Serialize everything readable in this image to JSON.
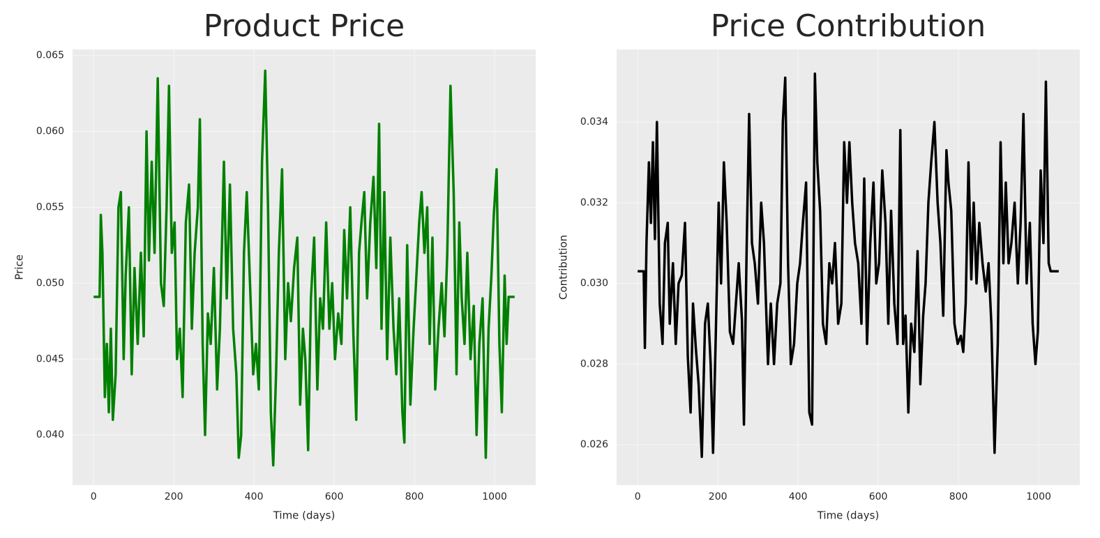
{
  "chart_data": [
    {
      "type": "line",
      "title": "Product Price",
      "xlabel": "Time (days)",
      "ylabel": "Price",
      "color": "#008000",
      "grid": true,
      "x": [
        0,
        10,
        15,
        18,
        22,
        28,
        33,
        38,
        43,
        48,
        55,
        62,
        68,
        75,
        80,
        88,
        95,
        102,
        110,
        118,
        125,
        132,
        138,
        145,
        152,
        160,
        168,
        175,
        182,
        188,
        195,
        202,
        208,
        215,
        222,
        230,
        238,
        245,
        252,
        260,
        265,
        272,
        278,
        285,
        292,
        300,
        308,
        315,
        325,
        332,
        340,
        348,
        356,
        362,
        368,
        375,
        382,
        390,
        398,
        405,
        412,
        420,
        428,
        435,
        442,
        448,
        455,
        462,
        470,
        478,
        485,
        492,
        500,
        508,
        515,
        522,
        528,
        535,
        542,
        550,
        558,
        565,
        572,
        580,
        588,
        595,
        602,
        610,
        618,
        625,
        632,
        640,
        648,
        655,
        662,
        668,
        675,
        682,
        690,
        698,
        705,
        712,
        718,
        725,
        732,
        740,
        748,
        755,
        762,
        770,
        775,
        782,
        790,
        798,
        806,
        812,
        818,
        825,
        832,
        838,
        845,
        852,
        860,
        868,
        875,
        882,
        890,
        898,
        905,
        912,
        918,
        925,
        932,
        940,
        948,
        955,
        962,
        970,
        978,
        985,
        992,
        998,
        1005,
        1012,
        1018,
        1025,
        1030,
        1035,
        1050
      ],
      "values": [
        0.0491,
        0.0491,
        0.0491,
        0.0545,
        0.052,
        0.0425,
        0.046,
        0.0415,
        0.047,
        0.041,
        0.044,
        0.055,
        0.056,
        0.045,
        0.0505,
        0.055,
        0.044,
        0.051,
        0.046,
        0.052,
        0.0465,
        0.06,
        0.0515,
        0.058,
        0.052,
        0.0635,
        0.05,
        0.0485,
        0.055,
        0.063,
        0.052,
        0.054,
        0.045,
        0.047,
        0.0425,
        0.054,
        0.0565,
        0.047,
        0.052,
        0.055,
        0.0608,
        0.046,
        0.04,
        0.048,
        0.046,
        0.051,
        0.043,
        0.047,
        0.058,
        0.049,
        0.0565,
        0.047,
        0.044,
        0.0385,
        0.04,
        0.052,
        0.056,
        0.05,
        0.044,
        0.046,
        0.043,
        0.058,
        0.064,
        0.055,
        0.0415,
        0.038,
        0.044,
        0.052,
        0.0575,
        0.045,
        0.05,
        0.0475,
        0.051,
        0.053,
        0.042,
        0.047,
        0.045,
        0.039,
        0.049,
        0.053,
        0.043,
        0.049,
        0.047,
        0.054,
        0.047,
        0.05,
        0.045,
        0.048,
        0.046,
        0.0535,
        0.049,
        0.055,
        0.0465,
        0.041,
        0.052,
        0.054,
        0.056,
        0.049,
        0.054,
        0.057,
        0.051,
        0.0605,
        0.047,
        0.056,
        0.045,
        0.053,
        0.047,
        0.044,
        0.049,
        0.0415,
        0.0395,
        0.0525,
        0.042,
        0.047,
        0.051,
        0.054,
        0.056,
        0.052,
        0.055,
        0.046,
        0.053,
        0.043,
        0.047,
        0.05,
        0.0465,
        0.052,
        0.063,
        0.056,
        0.044,
        0.054,
        0.049,
        0.046,
        0.052,
        0.045,
        0.0485,
        0.04,
        0.046,
        0.049,
        0.0385,
        0.047,
        0.0505,
        0.0545,
        0.0575,
        0.046,
        0.0415,
        0.0505,
        0.046,
        0.0491,
        0.0491
      ],
      "xlim": [
        -52.5,
        1102.5
      ],
      "xticks": [
        0,
        200,
        400,
        600,
        800,
        1000
      ],
      "ylim": [
        0.0367,
        0.0654
      ],
      "yticks": [
        {
          "value": 0.04,
          "label": "0.040"
        },
        0.045,
        {
          "value": 0.05,
          "label": "0.050"
        },
        0.055,
        {
          "value": 0.06,
          "label": "0.060"
        },
        0.065
      ]
    },
    {
      "type": "line",
      "title": "Price Contribution",
      "xlabel": "Time (days)",
      "ylabel": "Contribution",
      "color": "#000000",
      "grid": true,
      "x": [
        0,
        10,
        15,
        18,
        22,
        28,
        33,
        38,
        43,
        48,
        55,
        62,
        68,
        75,
        80,
        88,
        95,
        102,
        110,
        118,
        125,
        132,
        138,
        145,
        152,
        160,
        168,
        175,
        182,
        188,
        195,
        202,
        208,
        215,
        222,
        230,
        238,
        245,
        252,
        260,
        265,
        272,
        278,
        285,
        292,
        300,
        308,
        315,
        325,
        332,
        340,
        348,
        356,
        362,
        368,
        375,
        382,
        390,
        398,
        405,
        412,
        420,
        428,
        435,
        442,
        448,
        455,
        462,
        470,
        478,
        485,
        492,
        500,
        508,
        515,
        522,
        528,
        535,
        542,
        550,
        558,
        565,
        572,
        580,
        588,
        595,
        602,
        610,
        618,
        625,
        632,
        640,
        648,
        655,
        662,
        668,
        675,
        682,
        690,
        698,
        705,
        712,
        718,
        725,
        732,
        740,
        748,
        755,
        762,
        770,
        775,
        782,
        790,
        798,
        806,
        812,
        818,
        825,
        832,
        838,
        845,
        852,
        860,
        868,
        875,
        882,
        890,
        898,
        905,
        912,
        918,
        925,
        932,
        940,
        948,
        955,
        962,
        970,
        978,
        985,
        992,
        998,
        1005,
        1012,
        1018,
        1025,
        1030,
        1035,
        1050
      ],
      "values": [
        0.0303,
        0.0303,
        0.0303,
        0.0284,
        0.031,
        0.033,
        0.0315,
        0.0335,
        0.0311,
        0.034,
        0.0295,
        0.0285,
        0.031,
        0.0315,
        0.029,
        0.0305,
        0.0285,
        0.03,
        0.0302,
        0.0315,
        0.0282,
        0.0268,
        0.0295,
        0.0284,
        0.0275,
        0.0257,
        0.029,
        0.0295,
        0.028,
        0.0258,
        0.0288,
        0.032,
        0.03,
        0.033,
        0.0315,
        0.0288,
        0.0285,
        0.0295,
        0.0305,
        0.0291,
        0.0265,
        0.031,
        0.0342,
        0.031,
        0.0305,
        0.0295,
        0.032,
        0.031,
        0.028,
        0.0295,
        0.028,
        0.0295,
        0.03,
        0.034,
        0.0351,
        0.0305,
        0.028,
        0.0285,
        0.03,
        0.0305,
        0.0315,
        0.0325,
        0.0268,
        0.0265,
        0.0352,
        0.033,
        0.0318,
        0.029,
        0.0285,
        0.0305,
        0.03,
        0.031,
        0.029,
        0.0295,
        0.0335,
        0.032,
        0.0335,
        0.032,
        0.031,
        0.0305,
        0.029,
        0.0326,
        0.0285,
        0.031,
        0.0325,
        0.03,
        0.0305,
        0.0328,
        0.0315,
        0.029,
        0.0318,
        0.0295,
        0.0285,
        0.0338,
        0.0285,
        0.0292,
        0.0268,
        0.029,
        0.0283,
        0.0308,
        0.0275,
        0.0292,
        0.03,
        0.032,
        0.033,
        0.034,
        0.032,
        0.031,
        0.0292,
        0.0333,
        0.0325,
        0.0318,
        0.029,
        0.0285,
        0.0287,
        0.0283,
        0.0295,
        0.033,
        0.0301,
        0.032,
        0.03,
        0.0315,
        0.0305,
        0.0298,
        0.0305,
        0.029,
        0.0258,
        0.0285,
        0.0335,
        0.0305,
        0.0325,
        0.0305,
        0.031,
        0.032,
        0.03,
        0.0315,
        0.0342,
        0.03,
        0.0315,
        0.029,
        0.028,
        0.0288,
        0.0328,
        0.031,
        0.035,
        0.0305,
        0.0303,
        0.0303,
        0.0303
      ],
      "xlim": [
        -52.5,
        1102.5
      ],
      "xticks": [
        0,
        200,
        400,
        600,
        800,
        1000
      ],
      "ylim": [
        0.025,
        0.0358
      ],
      "yticks": [
        0.026,
        0.028,
        {
          "value": 0.03,
          "label": "0.030"
        },
        0.032,
        0.034
      ]
    }
  ]
}
